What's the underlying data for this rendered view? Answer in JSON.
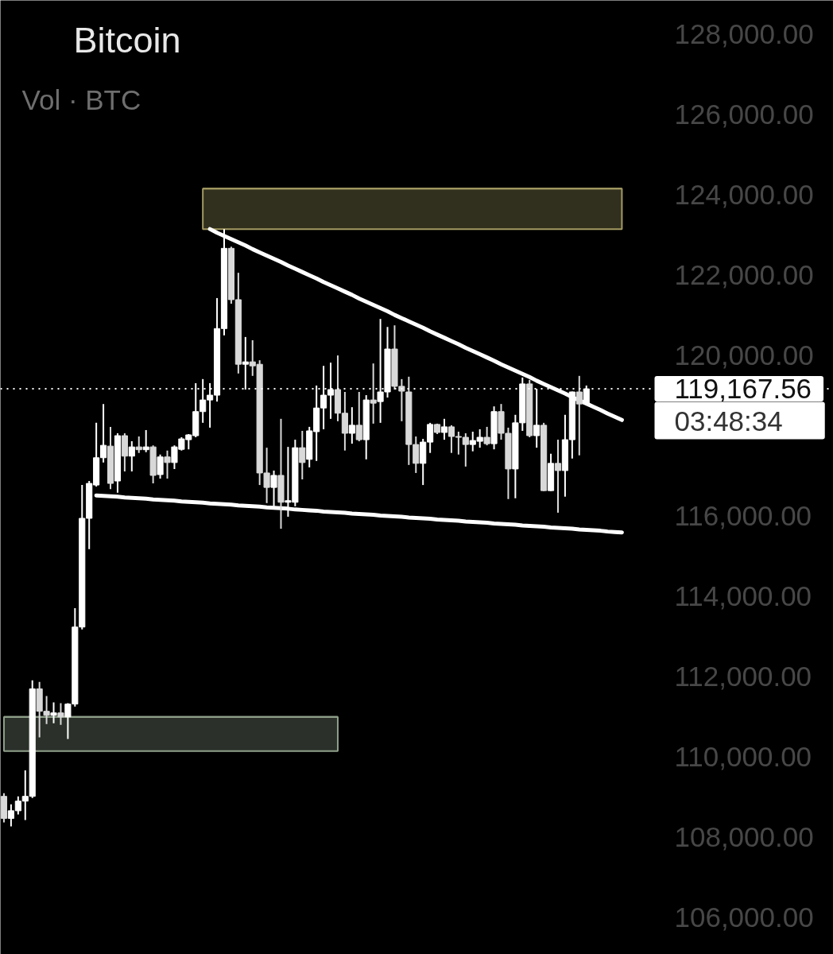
{
  "chart_data": {
    "type": "candlestick",
    "title": "Bitcoin",
    "subtitle": "Vol · BTC",
    "categories": [
      null,
      null,
      null,
      null,
      null,
      null,
      null,
      null,
      null,
      null,
      null,
      null,
      null,
      null,
      null,
      null,
      null,
      null,
      null,
      null,
      null,
      null,
      null,
      null,
      null,
      null,
      null,
      null,
      null,
      null,
      null,
      null,
      null,
      null,
      null,
      null,
      null,
      null,
      null,
      null,
      null,
      null,
      null,
      null,
      null,
      null,
      null,
      null,
      null,
      null,
      null,
      null,
      null,
      null,
      null,
      null,
      null,
      null,
      null,
      null,
      null,
      null,
      null,
      null,
      null,
      null,
      null,
      null,
      null,
      null,
      null,
      null,
      null,
      null,
      null,
      null,
      null,
      null,
      null,
      null,
      null,
      null,
      null,
      null,
      null,
      null,
      null,
      null,
      null,
      null,
      null,
      null,
      null,
      null
    ],
    "ohlc": [
      [
        109010,
        109090,
        108360,
        108460
      ],
      [
        108460,
        108810,
        108260,
        108650
      ],
      [
        108650,
        109010,
        108560,
        108890
      ],
      [
        108890,
        109660,
        108420,
        109010
      ],
      [
        109010,
        111900,
        108970,
        111690
      ],
      [
        111690,
        111860,
        110480,
        111130
      ],
      [
        111130,
        111510,
        110810,
        111030
      ],
      [
        111030,
        111350,
        110830,
        111090
      ],
      [
        111090,
        111330,
        110790,
        110990
      ],
      [
        110990,
        111330,
        110440,
        111310
      ],
      [
        111310,
        113700,
        111250,
        113230
      ],
      [
        113230,
        116770,
        113170,
        115940
      ],
      [
        115940,
        116870,
        115170,
        116810
      ],
      [
        116770,
        118320,
        116730,
        117450
      ],
      [
        117450,
        118790,
        117330,
        117760
      ],
      [
        117740,
        118220,
        116670,
        116810
      ],
      [
        116870,
        118060,
        116580,
        118000
      ],
      [
        118000,
        118060,
        117110,
        117490
      ],
      [
        117490,
        117860,
        117110,
        117720
      ],
      [
        117720,
        117980,
        117570,
        117650
      ],
      [
        117650,
        118140,
        117590,
        117720
      ],
      [
        117720,
        117760,
        116810,
        117010
      ],
      [
        117030,
        117530,
        116930,
        117470
      ],
      [
        117470,
        117630,
        116930,
        117330
      ],
      [
        117330,
        117760,
        117170,
        117720
      ],
      [
        117660,
        117960,
        117630,
        117920
      ],
      [
        117900,
        118040,
        117660,
        118020
      ],
      [
        118000,
        119310,
        117960,
        118600
      ],
      [
        118600,
        119410,
        118320,
        118890
      ],
      [
        118890,
        119310,
        118200,
        119010
      ],
      [
        119010,
        121430,
        118850,
        120670
      ],
      [
        120670,
        123150,
        120500,
        122670
      ],
      [
        122670,
        122710,
        121290,
        121390
      ],
      [
        121390,
        122060,
        119550,
        119780
      ],
      [
        119780,
        120460,
        119150,
        119840
      ],
      [
        119840,
        120380,
        119490,
        119740
      ],
      [
        119780,
        119880,
        116770,
        117070
      ],
      [
        117070,
        117700,
        116320,
        116710
      ],
      [
        116710,
        117130,
        116240,
        117010
      ],
      [
        117010,
        118420,
        115680,
        116340
      ],
      [
        116340,
        117720,
        115980,
        116380
      ],
      [
        116340,
        117900,
        116240,
        117700
      ],
      [
        117700,
        118120,
        116910,
        117330
      ],
      [
        117410,
        118220,
        117210,
        118120
      ],
      [
        118100,
        119250,
        117370,
        118690
      ],
      [
        118690,
        119740,
        118160,
        119010
      ],
      [
        119010,
        119820,
        118420,
        119150
      ],
      [
        119150,
        120000,
        118360,
        118560
      ],
      [
        118560,
        119090,
        117630,
        118060
      ],
      [
        118060,
        118710,
        117800,
        118260
      ],
      [
        118260,
        119090,
        117860,
        117900
      ],
      [
        117900,
        119010,
        117410,
        118890
      ],
      [
        118890,
        119800,
        118300,
        118810
      ],
      [
        118850,
        120910,
        118320,
        119090
      ],
      [
        119090,
        120710,
        118950,
        120160
      ],
      [
        120160,
        120750,
        119150,
        119230
      ],
      [
        119230,
        119410,
        118360,
        119110
      ],
      [
        119090,
        119470,
        117270,
        117780
      ],
      [
        117780,
        117980,
        117070,
        117310
      ],
      [
        117310,
        117920,
        116770,
        117840
      ],
      [
        117840,
        118320,
        117570,
        118280
      ],
      [
        118280,
        118300,
        118040,
        118080
      ],
      [
        118080,
        118420,
        117900,
        118220
      ],
      [
        118220,
        118260,
        117570,
        117980
      ],
      [
        117980,
        118100,
        117530,
        117960
      ],
      [
        117960,
        118060,
        117230,
        117780
      ],
      [
        117780,
        118100,
        117610,
        117880
      ],
      [
        117860,
        118160,
        117700,
        117960
      ],
      [
        117960,
        118220,
        117760,
        117800
      ],
      [
        117800,
        118730,
        117660,
        118600
      ],
      [
        118600,
        118790,
        117900,
        118060
      ],
      [
        118060,
        118200,
        116420,
        117170
      ],
      [
        117170,
        118520,
        116440,
        118320
      ],
      [
        118320,
        119450,
        118120,
        119290
      ],
      [
        119290,
        119390,
        117960,
        118000
      ],
      [
        118000,
        119170,
        117700,
        118260
      ],
      [
        118260,
        118320,
        116620,
        116630
      ],
      [
        116630,
        117550,
        116620,
        117310
      ],
      [
        117310,
        117900,
        116080,
        117130
      ],
      [
        117130,
        118520,
        116480,
        117900
      ],
      [
        117900,
        119100,
        117430,
        119090
      ],
      [
        119090,
        119490,
        117510,
        118790
      ],
      [
        118790,
        119250,
        118780,
        119167.56
      ],
      null,
      null,
      null,
      null,
      null,
      null,
      null,
      null,
      null,
      null,
      null
    ],
    "colors": [
      "#d9d9d9",
      "#ffffff",
      "#ffffff",
      "#ffffff",
      "#ffffff",
      "#d9d9d9",
      "#d9d9d9",
      "#ffffff",
      "#d9d9d9",
      "#ffffff",
      "#ffffff",
      "#ffffff",
      "#ffffff",
      "#ffffff",
      "#ffffff",
      "#d9d9d9",
      "#ffffff",
      "#d9d9d9",
      "#ffffff",
      "#d9d9d9",
      "#ffffff",
      "#d9d9d9",
      "#ffffff",
      "#d9d9d9",
      "#ffffff",
      "#ffffff",
      "#ffffff",
      "#ffffff",
      "#ffffff",
      "#ffffff",
      "#ffffff",
      "#ffffff",
      "#d9d9d9",
      "#d9d9d9",
      "#ffffff",
      "#d9d9d9",
      "#d9d9d9",
      "#d9d9d9",
      "#ffffff",
      "#d9d9d9",
      "#ffffff",
      "#ffffff",
      "#d9d9d9",
      "#ffffff",
      "#ffffff",
      "#ffffff",
      "#ffffff",
      "#d9d9d9",
      "#d9d9d9",
      "#ffffff",
      "#d9d9d9",
      "#ffffff",
      "#d9d9d9",
      "#ffffff",
      "#ffffff",
      "#d9d9d9",
      "#d9d9d9",
      "#d9d9d9",
      "#d9d9d9",
      "#ffffff",
      "#ffffff",
      "#d9d9d9",
      "#ffffff",
      "#d9d9d9",
      "#d9d9d9",
      "#d9d9d9",
      "#ffffff",
      "#ffffff",
      "#d9d9d9",
      "#ffffff",
      "#d9d9d9",
      "#d9d9d9",
      "#ffffff",
      "#ffffff",
      "#d9d9d9",
      "#ffffff",
      "#d9d9d9",
      "#ffffff",
      "#d9d9d9",
      "#ffffff",
      "#ffffff",
      "#d9d9d9",
      "#ffffff",
      null,
      null,
      null,
      null,
      null,
      null,
      null,
      null,
      null,
      null,
      null
    ],
    "series": [
      {
        "type": "line",
        "color": "#a39a62",
        "values": [
          null,
          null,
          null,
          null,
          null,
          null,
          null,
          null,
          null,
          null,
          null,
          null,
          null,
          null,
          null,
          null,
          null,
          null,
          null,
          null,
          null,
          null,
          null,
          null,
          null,
          null,
          null,
          null,
          124160,
          124160,
          124160,
          124160,
          124160,
          124160,
          124160,
          124160,
          124160,
          124160,
          124160,
          124160,
          124160,
          124160,
          124160,
          124160,
          124160,
          124160,
          124160,
          124160,
          124160,
          124160,
          124160,
          124160,
          124160,
          124160,
          124160,
          124160,
          124160,
          124160,
          124160,
          124160,
          124160,
          124160,
          124160,
          124160,
          124160,
          124160,
          124160,
          124160,
          124160,
          124160,
          124160,
          124160,
          124160,
          124160,
          124160,
          124160,
          124160,
          124160,
          124160,
          124160,
          124160,
          124160,
          124160,
          124160,
          124160,
          124160,
          124160,
          124160,
          null,
          null,
          null,
          null,
          null,
          null
        ],
        "upper": [
          null,
          null,
          null,
          null,
          null,
          null,
          null,
          null,
          null,
          null,
          null,
          null,
          null,
          null,
          null,
          null,
          null,
          null,
          null,
          null,
          null,
          null,
          null,
          null,
          null,
          null,
          null,
          null,
          124160,
          124160,
          124160,
          124160,
          124160,
          124160,
          124160,
          124160,
          124160,
          124160,
          124160,
          124160,
          124160,
          124160,
          124160,
          124160,
          124160,
          124160,
          124160,
          124160,
          124160,
          124160,
          124160,
          124160,
          124160,
          124160,
          124160,
          124160,
          124160,
          124160,
          124160,
          124160,
          124160,
          124160,
          124160,
          124160,
          124160,
          124160,
          124160,
          124160,
          124160,
          124160,
          124160,
          124160,
          124160,
          124160,
          124160,
          124160,
          124160,
          124160,
          124160,
          124160,
          124160,
          124160,
          124160,
          124160,
          124160,
          124160,
          124160,
          124160,
          null,
          null,
          null,
          null,
          null,
          null
        ],
        "lower": [
          null,
          null,
          null,
          null,
          null,
          null,
          null,
          null,
          null,
          null,
          null,
          null,
          null,
          null,
          null,
          null,
          null,
          null,
          null,
          null,
          null,
          null,
          null,
          null,
          null,
          null,
          null,
          null,
          123150,
          123150,
          123150,
          123150,
          123150,
          123150,
          123150,
          123150,
          123150,
          123150,
          123150,
          123150,
          123150,
          123150,
          123150,
          123150,
          123150,
          123150,
          123150,
          123150,
          123150,
          123150,
          123150,
          123150,
          123150,
          123150,
          123150,
          123150,
          123150,
          123150,
          123150,
          123150,
          123150,
          123150,
          123150,
          123150,
          123150,
          123150,
          123150,
          123150,
          123150,
          123150,
          123150,
          123150,
          123150,
          123150,
          123150,
          123150,
          123150,
          123150,
          123150,
          123150,
          123150,
          123150,
          123150,
          123150,
          123150,
          123150,
          123150,
          123150,
          null,
          null,
          null,
          null,
          null,
          null
        ]
      },
      {
        "type": "line",
        "color": "#8fa08a",
        "values": [
          110990,
          110990,
          110990,
          110990,
          110990,
          110990,
          110990,
          110990,
          110990,
          110990,
          110990,
          110990,
          110990,
          110990,
          110990,
          110990,
          110990,
          110990,
          110990,
          110990,
          110990,
          110990,
          110990,
          110990,
          110990,
          110990,
          110990,
          110990,
          110990,
          110990,
          110990,
          110990,
          110990,
          110990,
          110990,
          110990,
          110990,
          110990,
          110990,
          110990,
          110990,
          110990,
          110990,
          110990,
          110990,
          110990,
          110990,
          110990,
          null,
          null,
          null,
          null,
          null,
          null,
          null,
          null,
          null,
          null,
          null,
          null,
          null,
          null,
          null,
          null,
          null,
          null,
          null,
          null,
          null,
          null,
          null,
          null,
          null,
          null,
          null,
          null,
          null,
          null,
          null,
          null,
          null,
          null,
          null,
          null,
          null,
          null,
          null,
          null,
          null,
          null,
          null,
          null,
          null,
          null
        ],
        "upper": [
          110990,
          110990,
          110990,
          110990,
          110990,
          110990,
          110990,
          110990,
          110990,
          110990,
          110990,
          110990,
          110990,
          110990,
          110990,
          110990,
          110990,
          110990,
          110990,
          110990,
          110990,
          110990,
          110990,
          110990,
          110990,
          110990,
          110990,
          110990,
          110990,
          110990,
          110990,
          110990,
          110990,
          110990,
          110990,
          110990,
          110990,
          110990,
          110990,
          110990,
          110990,
          110990,
          110990,
          110990,
          110990,
          110990,
          110990,
          110990,
          null,
          null,
          null,
          null,
          null,
          null,
          null,
          null,
          null,
          null,
          null,
          null,
          null,
          null,
          null,
          null,
          null,
          null,
          null,
          null,
          null,
          null,
          null,
          null,
          null,
          null,
          null,
          null,
          null,
          null,
          null,
          null,
          null,
          null,
          null,
          null,
          null,
          null,
          null,
          null,
          null,
          null,
          null,
          null,
          null,
          null
        ],
        "lower": [
          110140,
          110140,
          110140,
          110140,
          110140,
          110140,
          110140,
          110140,
          110140,
          110140,
          110140,
          110140,
          110140,
          110140,
          110140,
          110140,
          110140,
          110140,
          110140,
          110140,
          110140,
          110140,
          110140,
          110140,
          110140,
          110140,
          110140,
          110140,
          110140,
          110140,
          110140,
          110140,
          110140,
          110140,
          110140,
          110140,
          110140,
          110140,
          110140,
          110140,
          110140,
          110140,
          110140,
          110140,
          110140,
          110140,
          110140,
          110140,
          null,
          null,
          null,
          null,
          null,
          null,
          null,
          null,
          null,
          null,
          null,
          null,
          null,
          null,
          null,
          null,
          null,
          null,
          null,
          null,
          null,
          null,
          null,
          null,
          null,
          null,
          null,
          null,
          null,
          null,
          null,
          null,
          null,
          null,
          null,
          null,
          null,
          null,
          null,
          null,
          null,
          null,
          null,
          null,
          null,
          null
        ]
      },
      {
        "type": "line",
        "color": "#ffffff",
        "values": [
          null,
          null,
          null,
          null,
          null,
          null,
          null,
          null,
          null,
          null,
          null,
          null,
          null,
          null,
          null,
          null,
          null,
          null,
          null,
          null,
          null,
          null,
          null,
          null,
          null,
          null,
          null,
          null,
          null,
          123150,
          123060,
          122980,
          122900,
          122820,
          122740,
          122650,
          122570,
          122490,
          122410,
          122330,
          122240,
          122160,
          122080,
          122000,
          121920,
          121830,
          121750,
          121670,
          121590,
          121510,
          121420,
          121340,
          121260,
          121180,
          121100,
          121010,
          120930,
          120850,
          120770,
          120690,
          120600,
          120520,
          120440,
          120360,
          120280,
          120190,
          120110,
          120030,
          119950,
          119870,
          119780,
          119700,
          119620,
          119540,
          119460,
          119370,
          119290,
          119210,
          119130,
          119050,
          118960,
          118880,
          118800,
          118720,
          118640,
          118550,
          118470,
          118390,
          null,
          null,
          null,
          null,
          null,
          null
        ]
      },
      {
        "type": "line",
        "color": "#ffffff",
        "values": [
          null,
          null,
          null,
          null,
          null,
          null,
          null,
          null,
          null,
          null,
          null,
          null,
          null,
          116510,
          116500,
          116490,
          116480,
          116460,
          116450,
          116440,
          116430,
          116410,
          116400,
          116390,
          116380,
          116360,
          116350,
          116340,
          116330,
          116310,
          116300,
          116290,
          116280,
          116260,
          116250,
          116240,
          116230,
          116210,
          116200,
          116190,
          116180,
          116160,
          116150,
          116140,
          116130,
          116110,
          116100,
          116090,
          116080,
          116060,
          116050,
          116040,
          116030,
          116010,
          116000,
          115990,
          115980,
          115960,
          115950,
          115940,
          115930,
          115910,
          115900,
          115890,
          115880,
          115860,
          115850,
          115840,
          115830,
          115810,
          115800,
          115790,
          115780,
          115760,
          115750,
          115740,
          115730,
          115710,
          115700,
          115690,
          115680,
          115660,
          115650,
          115640,
          115630,
          115610,
          115600,
          115590,
          null,
          null,
          null,
          null,
          null,
          null
        ]
      }
    ],
    "ylim": [
      105070,
      128850
    ],
    "yticks": [
      {
        "value": 106000,
        "label": "106,000.00"
      },
      {
        "value": 108000,
        "label": "108,000.00"
      },
      {
        "value": 110000,
        "label": "110,000.00"
      },
      {
        "value": 112000,
        "label": "112,000.00"
      },
      {
        "value": 114000,
        "label": "114,000.00"
      },
      {
        "value": 116000,
        "label": "116,000.00"
      },
      {
        "value": 120000,
        "label": "120,000.00"
      },
      {
        "value": 122000,
        "label": "122,000.00"
      },
      {
        "value": 124000,
        "label": "124,000.00"
      },
      {
        "value": 126000,
        "label": "126,000.00"
      },
      {
        "value": 128000,
        "label": "128,000.00"
      }
    ],
    "tick_labels": "y",
    "ref_lines": [
      {
        "axis": "y",
        "value": 119167.56,
        "label": "119,167.56",
        "color": "#ffffff",
        "line_style": "dotted"
      }
    ],
    "annotations": [
      "03:48:34"
    ]
  }
}
